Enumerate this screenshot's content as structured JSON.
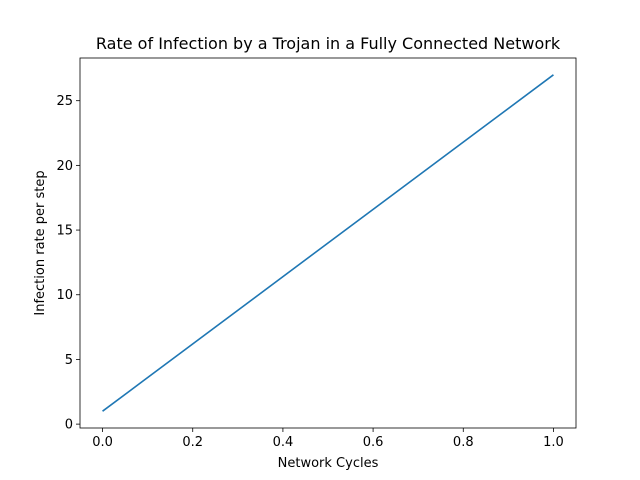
{
  "chart_data": {
    "type": "line",
    "title": "Rate of Infection by a Trojan in a Fully Connected Network",
    "xlabel": "Network Cycles",
    "ylabel": "Infection rate per step",
    "xlim": [
      -0.05,
      1.05
    ],
    "ylim": [
      -0.3,
      28.3
    ],
    "grid": false,
    "xticks": [
      0.0,
      0.2,
      0.4,
      0.6,
      0.8,
      1.0
    ],
    "xtick_labels": [
      "0.0",
      "0.2",
      "0.4",
      "0.6",
      "0.8",
      "1.0"
    ],
    "yticks": [
      0,
      5,
      10,
      15,
      20,
      25
    ],
    "ytick_labels": [
      "0",
      "5",
      "10",
      "15",
      "20",
      "25"
    ],
    "series": [
      {
        "color": "#1f77b4",
        "x": [
          0.0,
          1.0
        ],
        "y": [
          1,
          27
        ]
      }
    ]
  }
}
